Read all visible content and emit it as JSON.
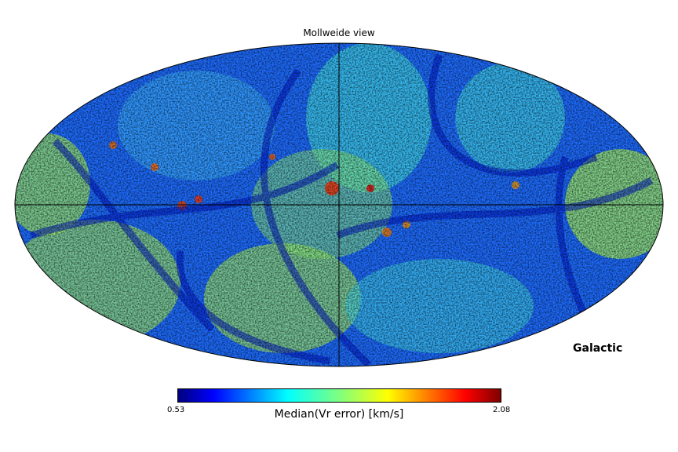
{
  "chart_data": {
    "type": "heatmap",
    "projection": "mollweide",
    "title": "Mollweide view",
    "coord_label": "Galactic",
    "colorbar": {
      "label": "Median(Vr error) [km/s]",
      "min": 0.53,
      "min_label": "0.53",
      "max": 2.08,
      "max_label": "2.08",
      "colormap": "jet"
    },
    "graticule": {
      "meridian_lon": 0,
      "equator_lat": 0
    }
  }
}
